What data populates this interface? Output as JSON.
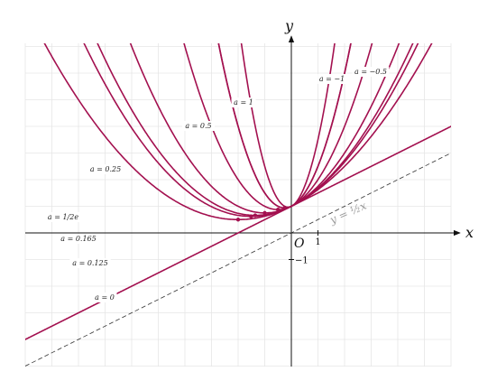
{
  "chart_data": {
    "type": "line",
    "xlabel": "x",
    "ylabel": "y",
    "xlim": [
      -10,
      6
    ],
    "ylim": [
      -5,
      7
    ],
    "grid": true,
    "origin_label": "O",
    "tick_labels": {
      "x": [
        "1"
      ],
      "y": [
        "−1"
      ]
    },
    "asymptote": {
      "label": "y = ½x",
      "slope": 0.5,
      "intercept": 0
    },
    "family_intercept": 1,
    "series": [
      {
        "name": "a = −0.5",
        "a": -0.5,
        "color": "#a3104f"
      },
      {
        "name": "a = −1",
        "a": -1,
        "color": "#a3104f"
      },
      {
        "name": "a = 1",
        "a": 1,
        "color": "#a3104f"
      },
      {
        "name": "a = 0.5",
        "a": 0.5,
        "color": "#a3104f"
      },
      {
        "name": "a = 0.25",
        "a": 0.25,
        "color": "#a3104f"
      },
      {
        "name": "a = 1/2e",
        "a": 0.18394,
        "color": "#a3104f"
      },
      {
        "name": "a = 0.165",
        "a": 0.165,
        "color": "#a3104f"
      },
      {
        "name": "a = 0.125",
        "a": 0.125,
        "color": "#a3104f"
      },
      {
        "name": "a = 0",
        "a": 0,
        "color": "#a3104f"
      }
    ]
  }
}
